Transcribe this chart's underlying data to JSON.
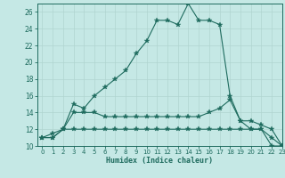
{
  "xlabel": "Humidex (Indice chaleur)",
  "bg_color": "#c5e8e5",
  "line_color": "#1e6b5e",
  "grid_color": "#b0d5d0",
  "xlim": [
    -0.5,
    23
  ],
  "ylim": [
    10,
    27
  ],
  "xticks": [
    0,
    1,
    2,
    3,
    4,
    5,
    6,
    7,
    8,
    9,
    10,
    11,
    12,
    13,
    14,
    15,
    16,
    17,
    18,
    19,
    20,
    21,
    22,
    23
  ],
  "yticks": [
    10,
    12,
    14,
    16,
    18,
    20,
    22,
    24,
    26
  ],
  "line1_x": [
    0,
    1,
    2,
    3,
    4,
    5,
    6,
    7,
    8,
    9,
    10,
    11,
    12,
    13,
    14,
    15,
    16,
    17,
    18,
    19,
    20,
    21,
    22,
    23
  ],
  "line1_y": [
    11,
    11,
    12,
    15,
    14.5,
    16,
    17,
    18,
    19,
    21,
    22.5,
    25,
    25,
    24.5,
    27,
    25,
    25,
    24.5,
    16,
    13,
    12,
    12,
    10,
    10
  ],
  "line2_x": [
    0,
    1,
    2,
    3,
    4,
    5,
    6,
    7,
    8,
    9,
    10,
    11,
    12,
    13,
    14,
    15,
    16,
    17,
    18,
    19,
    20,
    21,
    22,
    23
  ],
  "line2_y": [
    11,
    11,
    12,
    14,
    14,
    14,
    13.5,
    13.5,
    13.5,
    13.5,
    13.5,
    13.5,
    13.5,
    13.5,
    13.5,
    13.5,
    14,
    14.5,
    15.5,
    13,
    13,
    12.5,
    12,
    10
  ],
  "line3_x": [
    0,
    1,
    2,
    3,
    4,
    5,
    6,
    7,
    8,
    9,
    10,
    11,
    12,
    13,
    14,
    15,
    16,
    17,
    18,
    19,
    20,
    21,
    22,
    23
  ],
  "line3_y": [
    11,
    11.5,
    12,
    12,
    12,
    12,
    12,
    12,
    12,
    12,
    12,
    12,
    12,
    12,
    12,
    12,
    12,
    12,
    12,
    12,
    12,
    12,
    11,
    10
  ]
}
